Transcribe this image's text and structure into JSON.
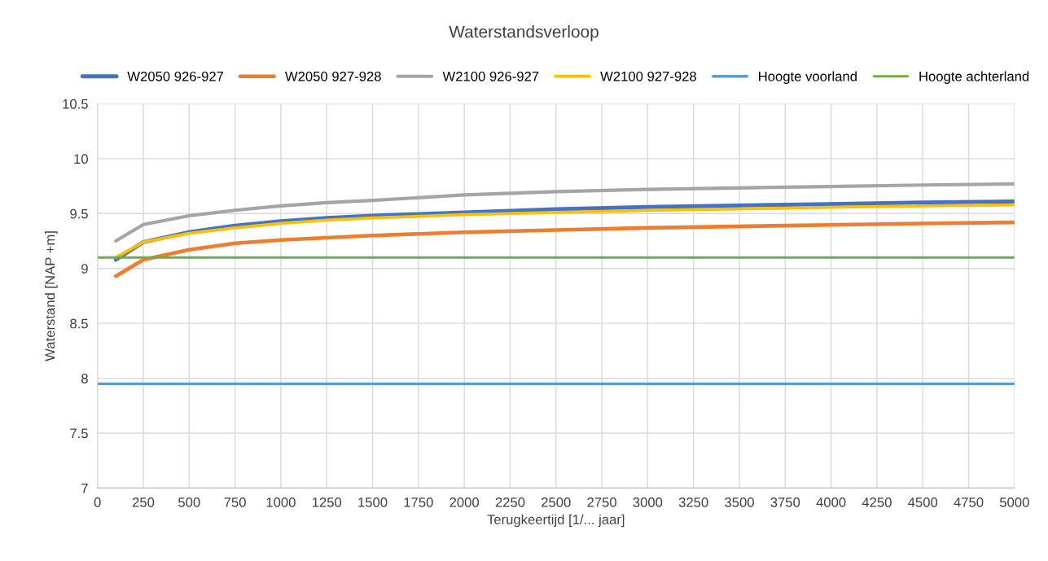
{
  "chart_data": {
    "type": "line",
    "title": "Waterstandsverloop",
    "xlabel": "Terugkeertijd [1/... jaar]",
    "ylabel": "Waterstand [NAP +m]",
    "xlim": [
      0,
      5000
    ],
    "xticks": [
      0,
      250,
      500,
      750,
      1000,
      1250,
      1500,
      1750,
      2000,
      2250,
      2500,
      2750,
      3000,
      3250,
      3500,
      3750,
      4000,
      4250,
      4500,
      4750,
      5000
    ],
    "ylim": [
      7,
      10.5
    ],
    "yticks": [
      7,
      7.5,
      8,
      8.5,
      9,
      9.5,
      10,
      10.5
    ],
    "grid": true,
    "legend": "top",
    "marker": "none",
    "line_style": "solid",
    "series": [
      {
        "name": "W2050 926-927",
        "color": "#4472c4",
        "x": [
          100,
          250,
          500,
          750,
          1000,
          1250,
          1500,
          2000,
          2500,
          3000,
          3750,
          4500,
          5000
        ],
        "values": [
          9.08,
          9.24,
          9.33,
          9.39,
          9.43,
          9.46,
          9.48,
          9.51,
          9.54,
          9.56,
          9.58,
          9.6,
          9.61
        ]
      },
      {
        "name": "W2050 927-928",
        "color": "#ed7d31",
        "x": [
          100,
          250,
          500,
          750,
          1000,
          1250,
          1500,
          2000,
          2500,
          3000,
          3750,
          4500,
          5000
        ],
        "values": [
          8.93,
          9.08,
          9.17,
          9.23,
          9.26,
          9.28,
          9.3,
          9.33,
          9.35,
          9.37,
          9.39,
          9.41,
          9.42
        ]
      },
      {
        "name": "W2100 926-927",
        "color": "#a5a5a5",
        "x": [
          100,
          250,
          500,
          750,
          1000,
          1250,
          1500,
          2000,
          2500,
          3000,
          3750,
          4500,
          5000
        ],
        "values": [
          9.25,
          9.4,
          9.48,
          9.53,
          9.57,
          9.6,
          9.62,
          9.67,
          9.7,
          9.72,
          9.74,
          9.76,
          9.77
        ]
      },
      {
        "name": "W2100 927-928",
        "color": "#ffc000",
        "x": [
          100,
          250,
          500,
          750,
          1000,
          1250,
          1500,
          2000,
          2500,
          3000,
          3750,
          4500,
          5000
        ],
        "values": [
          9.1,
          9.24,
          9.32,
          9.37,
          9.41,
          9.44,
          9.46,
          9.49,
          9.51,
          9.53,
          9.55,
          9.57,
          9.58
        ]
      },
      {
        "name": "Hoogte voorland",
        "color": "#5b9bd5",
        "x": [
          0,
          5000
        ],
        "values": [
          7.95,
          7.95
        ]
      },
      {
        "name": "Hoogte achterland",
        "color": "#70ad47",
        "x": [
          0,
          5000
        ],
        "values": [
          9.1,
          9.1
        ]
      }
    ]
  }
}
